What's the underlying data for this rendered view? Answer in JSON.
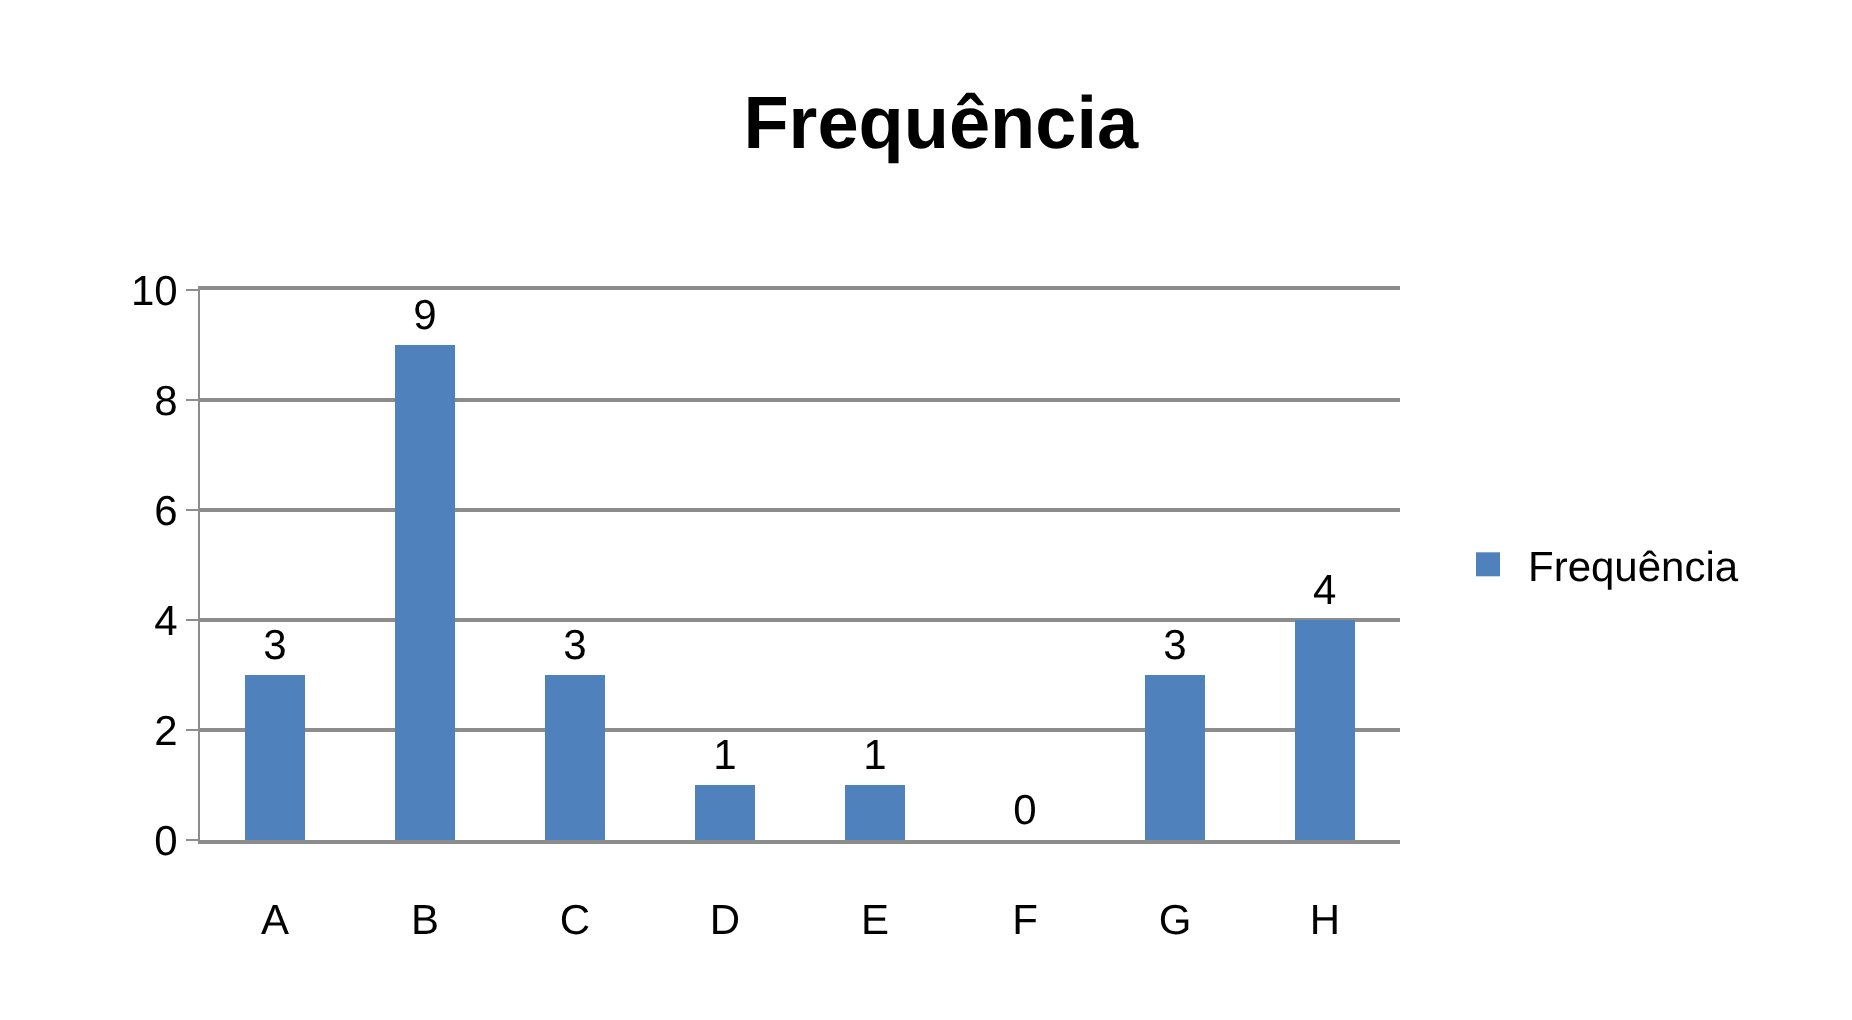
{
  "chart_data": {
    "type": "bar",
    "title": "Frequência",
    "categories": [
      "A",
      "B",
      "C",
      "D",
      "E",
      "F",
      "G",
      "H"
    ],
    "series": [
      {
        "name": "Frequência",
        "color": "#4f81bd",
        "values": [
          3,
          9,
          3,
          1,
          1,
          0,
          3,
          4
        ]
      }
    ],
    "ylim": [
      0,
      10
    ],
    "yticks": [
      0,
      2,
      4,
      6,
      8,
      10
    ],
    "grid": "y",
    "legend": "right",
    "data_labels": true
  }
}
